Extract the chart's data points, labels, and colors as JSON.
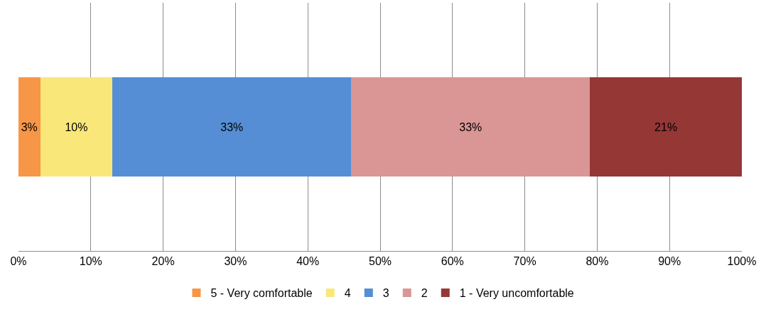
{
  "chart_data": {
    "type": "bar",
    "orientation": "horizontal",
    "stacked": true,
    "categories": [
      null
    ],
    "series": [
      {
        "name": "5 - Very comfortable",
        "color": "#f79646",
        "values": [
          3
        ],
        "value_labels": [
          "3%"
        ]
      },
      {
        "name": "4",
        "color": "#fae77a",
        "values": [
          10
        ],
        "value_labels": [
          "10%"
        ]
      },
      {
        "name": "3",
        "color": "#558ed5",
        "values": [
          33
        ],
        "value_labels": [
          "33%"
        ]
      },
      {
        "name": "2",
        "color": "#d99694",
        "values": [
          33
        ],
        "value_labels": [
          "33%"
        ]
      },
      {
        "name": "1 - Very uncomfortable",
        "color": "#953735",
        "values": [
          21
        ],
        "value_labels": [
          "21%"
        ]
      }
    ],
    "xlim": [
      0,
      100
    ],
    "xticks": [
      {
        "value": 0,
        "label": "0%"
      },
      {
        "value": 10,
        "label": "10%"
      },
      {
        "value": 20,
        "label": "20%"
      },
      {
        "value": 30,
        "label": "30%"
      },
      {
        "value": 40,
        "label": "40%"
      },
      {
        "value": 50,
        "label": "50%"
      },
      {
        "value": 60,
        "label": "60%"
      },
      {
        "value": 70,
        "label": "70%"
      },
      {
        "value": 80,
        "label": "80%"
      },
      {
        "value": 90,
        "label": "90%"
      },
      {
        "value": 100,
        "label": "100%"
      }
    ],
    "grid": "x",
    "legend": "bottom"
  }
}
